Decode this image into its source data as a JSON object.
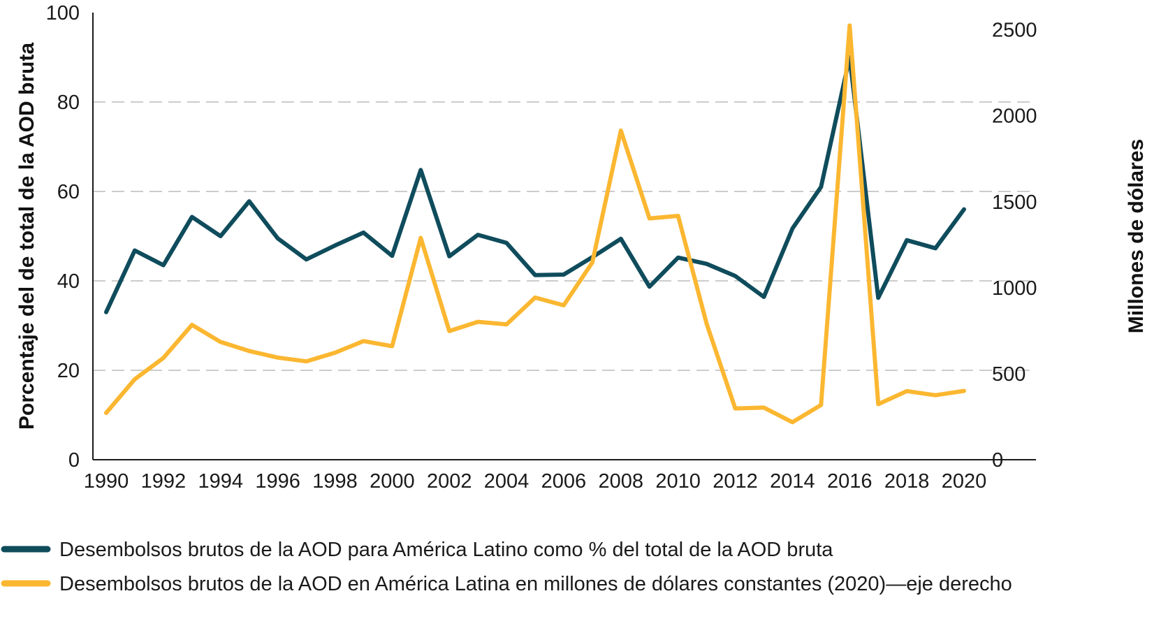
{
  "chart_data": {
    "type": "line",
    "x": [
      1990,
      1991,
      1992,
      1993,
      1994,
      1995,
      1996,
      1997,
      1998,
      1999,
      2000,
      2001,
      2002,
      2003,
      2004,
      2005,
      2006,
      2007,
      2008,
      2009,
      2010,
      2011,
      2012,
      2013,
      2014,
      2015,
      2016,
      2017,
      2018,
      2019,
      2020
    ],
    "x_tick_labels": [
      "1990",
      "1992",
      "1994",
      "1996",
      "1998",
      "2000",
      "2002",
      "2004",
      "2006",
      "2008",
      "2010",
      "2012",
      "2014",
      "2016",
      "2018",
      "2020"
    ],
    "ylabel": "Porcentaje del de total de la AOD bruta",
    "y2label": "Millones de dólares",
    "ylim": [
      0,
      100
    ],
    "y2lim": [
      0,
      2600
    ],
    "y_ticks": [
      "0",
      "20",
      "40",
      "60",
      "80",
      "100"
    ],
    "y2_ticks": [
      "0",
      "500",
      "1000",
      "1500",
      "2000",
      "2500"
    ],
    "grid": "horizontal dashed",
    "legend_position": "bottom",
    "series": [
      {
        "name": "Desembolsos brutos de la AOD para América Latino como % del total de la AOD bruta",
        "axis": "left",
        "color": "#0f4c5c",
        "values": [
          33,
          46.8,
          43.5,
          54.3,
          50,
          57.8,
          49.5,
          44.8,
          47.9,
          50.8,
          45.6,
          64.8,
          45.5,
          50.3,
          48.5,
          41.3,
          41.4,
          45.3,
          49.4,
          38.7,
          45.2,
          43.8,
          41.1,
          36.4,
          51.7,
          61,
          90,
          36.2,
          49.1,
          47.3,
          56
        ]
      },
      {
        "name": "Desembolsos brutos de la AOD en América Latina en millones de dólares constantes (2020)—eje derecho",
        "axis": "right",
        "color": "#fbb731",
        "values": [
          272,
          468,
          592,
          784,
          685,
          632,
          594,
          572,
          622,
          690,
          660,
          1290,
          748,
          802,
          787,
          943,
          898,
          1147,
          1914,
          1403,
          1418,
          790,
          298,
          303,
          218,
          318,
          2525,
          323,
          399,
          375,
          400
        ]
      }
    ],
    "colors": {
      "grid": "#cccccc",
      "axis": "#1a1a1a"
    }
  }
}
